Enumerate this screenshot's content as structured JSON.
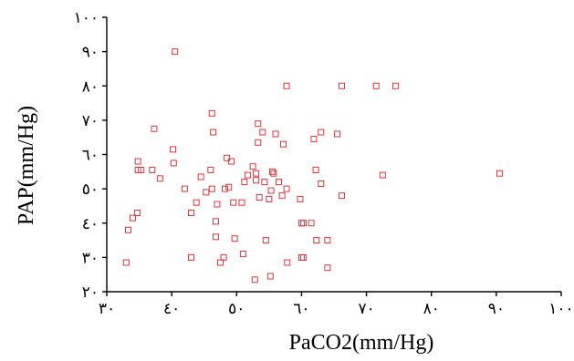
{
  "chart_data": {
    "type": "scatter",
    "title": "",
    "xlabel": "PaCO2(mm/Hg)",
    "ylabel": "PAP(mm/Hg)",
    "xlim": [
      30,
      100
    ],
    "ylim": [
      20,
      100
    ],
    "xticks": [
      30,
      40,
      50,
      60,
      70,
      80,
      90,
      100
    ],
    "yticks": [
      20,
      30,
      40,
      50,
      60,
      70,
      80,
      90,
      100
    ],
    "xtick_labels": [
      "٣٠",
      "٤٠",
      "٥٠",
      "٦٠",
      "٧٠",
      "٨٠",
      "٩٠",
      "١٠٠"
    ],
    "ytick_labels": [
      "٢٠",
      "٣٠",
      "٤٠",
      "٥٠",
      "٦٠",
      "٧٠",
      "٨٠",
      "٩٠",
      "١٠٠"
    ],
    "grid": false,
    "marker": "hollow-square",
    "marker_color": "#e0333a",
    "points": [
      [
        33.0,
        28.5
      ],
      [
        33.3,
        38.0
      ],
      [
        34.0,
        41.5
      ],
      [
        34.7,
        43.0
      ],
      [
        34.8,
        55.5
      ],
      [
        34.8,
        58.0
      ],
      [
        35.3,
        55.5
      ],
      [
        37.0,
        55.5
      ],
      [
        37.3,
        67.5
      ],
      [
        38.2,
        53.0
      ],
      [
        40.2,
        61.5
      ],
      [
        40.3,
        57.5
      ],
      [
        40.5,
        90.0
      ],
      [
        42.0,
        50.0
      ],
      [
        43.0,
        43.0
      ],
      [
        43.0,
        30.0
      ],
      [
        43.8,
        46.0
      ],
      [
        44.5,
        53.5
      ],
      [
        45.3,
        49.0
      ],
      [
        46.0,
        55.5
      ],
      [
        46.2,
        72.0
      ],
      [
        46.2,
        50.0
      ],
      [
        46.4,
        66.5
      ],
      [
        46.8,
        40.5
      ],
      [
        46.8,
        36.0
      ],
      [
        47.0,
        45.5
      ],
      [
        47.5,
        28.5
      ],
      [
        48.0,
        30.0
      ],
      [
        48.2,
        50.0
      ],
      [
        48.5,
        59.0
      ],
      [
        48.8,
        50.5
      ],
      [
        49.2,
        58.0
      ],
      [
        49.5,
        46.0
      ],
      [
        49.7,
        35.5
      ],
      [
        50.8,
        46.0
      ],
      [
        51.0,
        31.0
      ],
      [
        51.2,
        52.0
      ],
      [
        51.7,
        54.0
      ],
      [
        52.5,
        56.5
      ],
      [
        52.8,
        23.5
      ],
      [
        53.0,
        52.5
      ],
      [
        53.0,
        54.5
      ],
      [
        53.3,
        69.0
      ],
      [
        53.3,
        63.5
      ],
      [
        53.5,
        47.5
      ],
      [
        54.0,
        66.5
      ],
      [
        54.3,
        52.0
      ],
      [
        54.5,
        35.0
      ],
      [
        55.0,
        47.0
      ],
      [
        55.2,
        24.5
      ],
      [
        55.3,
        49.5
      ],
      [
        55.5,
        55.0
      ],
      [
        55.7,
        54.5
      ],
      [
        56.0,
        66.0
      ],
      [
        56.5,
        52.0
      ],
      [
        57.0,
        48.0
      ],
      [
        57.2,
        63.0
      ],
      [
        57.7,
        50.0
      ],
      [
        57.7,
        80.0
      ],
      [
        57.8,
        28.5
      ],
      [
        59.8,
        47.0
      ],
      [
        60.0,
        30.0
      ],
      [
        60.0,
        40.0
      ],
      [
        60.3,
        30.0
      ],
      [
        60.3,
        40.0
      ],
      [
        61.5,
        40.0
      ],
      [
        61.9,
        64.5
      ],
      [
        62.2,
        55.5
      ],
      [
        62.3,
        35.0
      ],
      [
        63.0,
        66.5
      ],
      [
        63.0,
        51.5
      ],
      [
        64.0,
        27.0
      ],
      [
        64.0,
        35.0
      ],
      [
        65.5,
        66.0
      ],
      [
        66.2,
        48.0
      ],
      [
        66.2,
        80.0
      ],
      [
        71.5,
        80.0
      ],
      [
        72.5,
        54.0
      ],
      [
        74.5,
        80.0
      ],
      [
        90.5,
        54.5
      ]
    ]
  }
}
